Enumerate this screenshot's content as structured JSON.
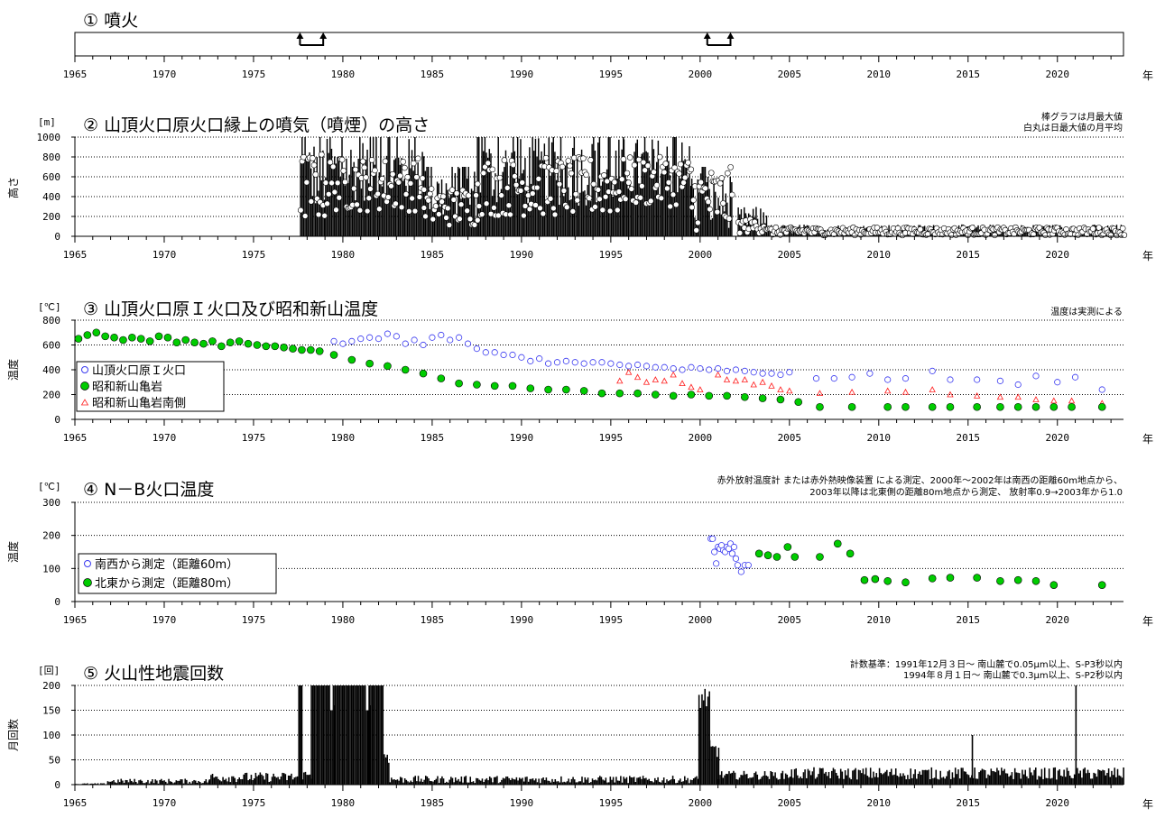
{
  "x_axis": {
    "min": 1965,
    "max": 2023.7,
    "ticks": [
      1965,
      1970,
      1975,
      1980,
      1985,
      1990,
      1995,
      2000,
      2005,
      2010,
      2015,
      2020
    ],
    "unit": "年"
  },
  "chart_data": [
    {
      "type": "timeline",
      "title": "① 噴火",
      "eruptions": [
        [
          1977.6,
          1978.9
        ],
        [
          2000.4,
          2001.7
        ]
      ]
    },
    {
      "type": "bar",
      "title": "② 山頂火口原火口縁上の噴気（噴煙）の高さ",
      "unit": "[m]",
      "ylabel": "高さ",
      "ylim": [
        0,
        1000
      ],
      "yticks": [
        0,
        200,
        400,
        600,
        800,
        1000
      ],
      "notes": [
        "棒グラフは月最大値",
        "白丸は日最大値の月平均"
      ],
      "series": [
        {
          "type": "bar",
          "segments": [
            [
              1977.6,
              1979.0,
              250,
              1000
            ],
            [
              1979.0,
              1984.5,
              350,
              1000
            ],
            [
              1984.5,
              1987.5,
              150,
              700
            ],
            [
              1987.5,
              1995.7,
              300,
              1000
            ],
            [
              1995.7,
              1999.5,
              400,
              1000
            ],
            [
              1999.5,
              2000.4,
              100,
              700
            ],
            [
              2000.4,
              2001.8,
              80,
              600
            ],
            [
              2001.8,
              2002.1,
              0,
              0
            ],
            [
              2002.1,
              2003.7,
              70,
              300
            ],
            [
              2003.7,
              2023.7,
              25,
              120
            ]
          ]
        },
        {
          "type": "scatter",
          "segments": [
            [
              1977.6,
              1979.0,
              150,
              850
            ],
            [
              1979.0,
              1984.5,
              250,
              800
            ],
            [
              1984.5,
              1987.5,
              100,
              500
            ],
            [
              1987.5,
              1995.7,
              200,
              800
            ],
            [
              1995.7,
              1999.5,
              300,
              800
            ],
            [
              1999.5,
              2001.8,
              50,
              700
            ],
            [
              2002.1,
              2003.7,
              30,
              180
            ],
            [
              2003.7,
              2023.7,
              10,
              90
            ]
          ]
        }
      ]
    },
    {
      "type": "scatter",
      "title": "③ 山頂火口原Ｉ火口及び昭和新山温度",
      "unit": "[℃]",
      "ylabel": "温度",
      "ylim": [
        0,
        800
      ],
      "yticks": [
        0,
        200,
        400,
        600,
        800
      ],
      "notes": [
        "温度は実測による"
      ],
      "series": [
        {
          "name": "山頂火口原Ｉ火口",
          "x": [
            1979.5,
            1980,
            1980.5,
            1981,
            1981.5,
            1982,
            1982.5,
            1983,
            1983.5,
            1984,
            1984.5,
            1985,
            1985.5,
            1986,
            1986.5,
            1987,
            1987.5,
            1988,
            1988.5,
            1989,
            1989.5,
            1990,
            1990.5,
            1991,
            1991.5,
            1992,
            1992.5,
            1993,
            1993.5,
            1994,
            1994.5,
            1995,
            1995.5,
            1996,
            1996.5,
            1997,
            1997.5,
            1998,
            1998.5,
            1999,
            1999.5,
            2000,
            2000.5,
            2001,
            2001.5,
            2002,
            2002.5,
            2003,
            2003.5,
            2004,
            2004.5,
            2005,
            2006.5,
            2007.5,
            2008.5,
            2009.5,
            2010.5,
            2011.5,
            2013,
            2014,
            2015.5,
            2016.8,
            2017.8,
            2018.8,
            2020,
            2021,
            2022.5
          ],
          "y": [
            630,
            610,
            630,
            650,
            660,
            650,
            690,
            670,
            610,
            640,
            600,
            660,
            680,
            640,
            660,
            610,
            570,
            540,
            540,
            520,
            520,
            500,
            470,
            490,
            450,
            460,
            470,
            460,
            450,
            460,
            460,
            450,
            440,
            430,
            440,
            430,
            420,
            420,
            410,
            400,
            420,
            410,
            400,
            410,
            390,
            400,
            390,
            380,
            370,
            370,
            360,
            380,
            330,
            330,
            340,
            370,
            320,
            330,
            390,
            320,
            320,
            310,
            280,
            350,
            300,
            340,
            240
          ]
        },
        {
          "name": "昭和新山亀岩",
          "x": [
            1965.2,
            1965.7,
            1966.2,
            1966.7,
            1967.2,
            1967.7,
            1968.2,
            1968.7,
            1969.2,
            1969.7,
            1970.2,
            1970.7,
            1971.2,
            1971.7,
            1972.2,
            1972.7,
            1973.2,
            1973.7,
            1974.2,
            1974.7,
            1975.2,
            1975.7,
            1976.2,
            1976.7,
            1977.2,
            1977.7,
            1978.2,
            1978.7,
            1979.5,
            1980.5,
            1981.5,
            1982.5,
            1983.5,
            1984.5,
            1985.5,
            1986.5,
            1987.5,
            1988.5,
            1989.5,
            1990.5,
            1991.5,
            1992.5,
            1993.5,
            1994.5,
            1995.5,
            1996.5,
            1997.5,
            1998.5,
            1999.5,
            2000.5,
            2001.5,
            2002.5,
            2003.5,
            2004.5,
            2005.5,
            2006.7,
            2008.5,
            2010.5,
            2011.5,
            2013,
            2014,
            2015.5,
            2016.8,
            2017.8,
            2018.8,
            2019.8,
            2020.8,
            2022.5
          ],
          "y": [
            650,
            680,
            700,
            670,
            660,
            640,
            660,
            650,
            630,
            670,
            660,
            620,
            640,
            620,
            610,
            630,
            590,
            620,
            630,
            610,
            600,
            590,
            590,
            580,
            570,
            560,
            560,
            550,
            520,
            480,
            450,
            430,
            400,
            370,
            330,
            290,
            280,
            270,
            270,
            250,
            240,
            240,
            230,
            210,
            210,
            210,
            200,
            190,
            200,
            190,
            190,
            180,
            170,
            160,
            140,
            100,
            100,
            100,
            100,
            100,
            100,
            100,
            100,
            100,
            100,
            100,
            100,
            100
          ]
        },
        {
          "name": "昭和新山亀岩南側",
          "x": [
            1995.5,
            1996,
            1996.5,
            1997,
            1997.5,
            1998,
            1998.5,
            1999,
            1999.5,
            2000,
            2001,
            2001.5,
            2002,
            2002.5,
            2003,
            2003.5,
            2004,
            2004.5,
            2005,
            2006.7,
            2008.5,
            2010.5,
            2011.5,
            2013,
            2014,
            2015.5,
            2016.8,
            2017.8,
            2018.8,
            2019.8,
            2020.8,
            2022.5
          ],
          "y": [
            310,
            380,
            340,
            300,
            320,
            310,
            360,
            290,
            260,
            240,
            360,
            320,
            310,
            320,
            280,
            300,
            270,
            240,
            230,
            210,
            220,
            230,
            220,
            240,
            200,
            190,
            180,
            180,
            160,
            150,
            150,
            130
          ]
        }
      ]
    },
    {
      "type": "scatter",
      "title": "④ N－B火口温度",
      "unit": "[℃]",
      "ylabel": "温度",
      "ylim": [
        0,
        300
      ],
      "yticks": [
        0,
        100,
        200,
        300
      ],
      "notes": [
        "赤外放射温度計 または赤外熱映像装置 による測定、2000年～2002年は南西の距離60m地点から、",
        "2003年以降は北東側の距離80m地点から測定、 放射率0.9→2003年から1.0"
      ],
      "series": [
        {
          "name": "南西から測定（距離60m）",
          "x": [
            2000.6,
            2000.7,
            2000.8,
            2000.9,
            2001,
            2001.1,
            2001.2,
            2001.3,
            2001.4,
            2001.5,
            2001.6,
            2001.7,
            2001.8,
            2001.9,
            2002,
            2002.1,
            2002.3,
            2002.5,
            2002.7
          ],
          "y": [
            190,
            190,
            150,
            115,
            165,
            160,
            170,
            155,
            150,
            165,
            160,
            175,
            145,
            165,
            130,
            110,
            90,
            110,
            110
          ]
        },
        {
          "name": "北東から測定（距離80m）",
          "x": [
            2003.3,
            2003.8,
            2004.3,
            2004.9,
            2005.3,
            2006.7,
            2007.7,
            2008.4,
            2009.2,
            2009.8,
            2010.5,
            2011.5,
            2013,
            2014,
            2015.5,
            2016.8,
            2017.8,
            2018.8,
            2019.8,
            2022.5
          ],
          "y": [
            145,
            140,
            135,
            165,
            135,
            135,
            175,
            145,
            65,
            68,
            62,
            58,
            70,
            72,
            72,
            62,
            65,
            62,
            50,
            50
          ]
        }
      ]
    },
    {
      "type": "bar",
      "title": "⑤ 火山性地震回数",
      "unit": "[回]",
      "ylabel": "月回数",
      "ylim": [
        0,
        200
      ],
      "yticks": [
        0,
        50,
        100,
        150,
        200
      ],
      "notes": [
        "計数基準：1991年12月３日～ 南山麓で0.05μm以上、S-P3秒以内",
        "1994年８月１日～ 南山麓で0.3μm以上、S-P2秒以内"
      ],
      "series": [
        {
          "type": "bar",
          "segments": [
            [
              1965,
              1966.8,
              0,
              3
            ],
            [
              1966.8,
              1972.5,
              2,
              12
            ],
            [
              1972.5,
              1977.5,
              5,
              25
            ],
            [
              1977.5,
              1977.7,
              200,
              200
            ],
            [
              1977.7,
              1978.2,
              8,
              30
            ],
            [
              1978.2,
              1982.2,
              200,
              200
            ],
            [
              1982.2,
              1982.6,
              40,
              80
            ],
            [
              1982.6,
              1999.9,
              3,
              18
            ],
            [
              1999.9,
              2000.5,
              150,
              200
            ],
            [
              2000.5,
              2001,
              40,
              90
            ],
            [
              2001,
              2005,
              10,
              28
            ],
            [
              2005,
              2023.7,
              10,
              35
            ]
          ]
        }
      ],
      "spikes": [
        [
          1977.6,
          200
        ],
        [
          1981.4,
          150
        ],
        [
          1981.5,
          160
        ],
        [
          1979.5,
          160
        ],
        [
          2015.2,
          100
        ],
        [
          2021,
          200
        ]
      ]
    }
  ]
}
